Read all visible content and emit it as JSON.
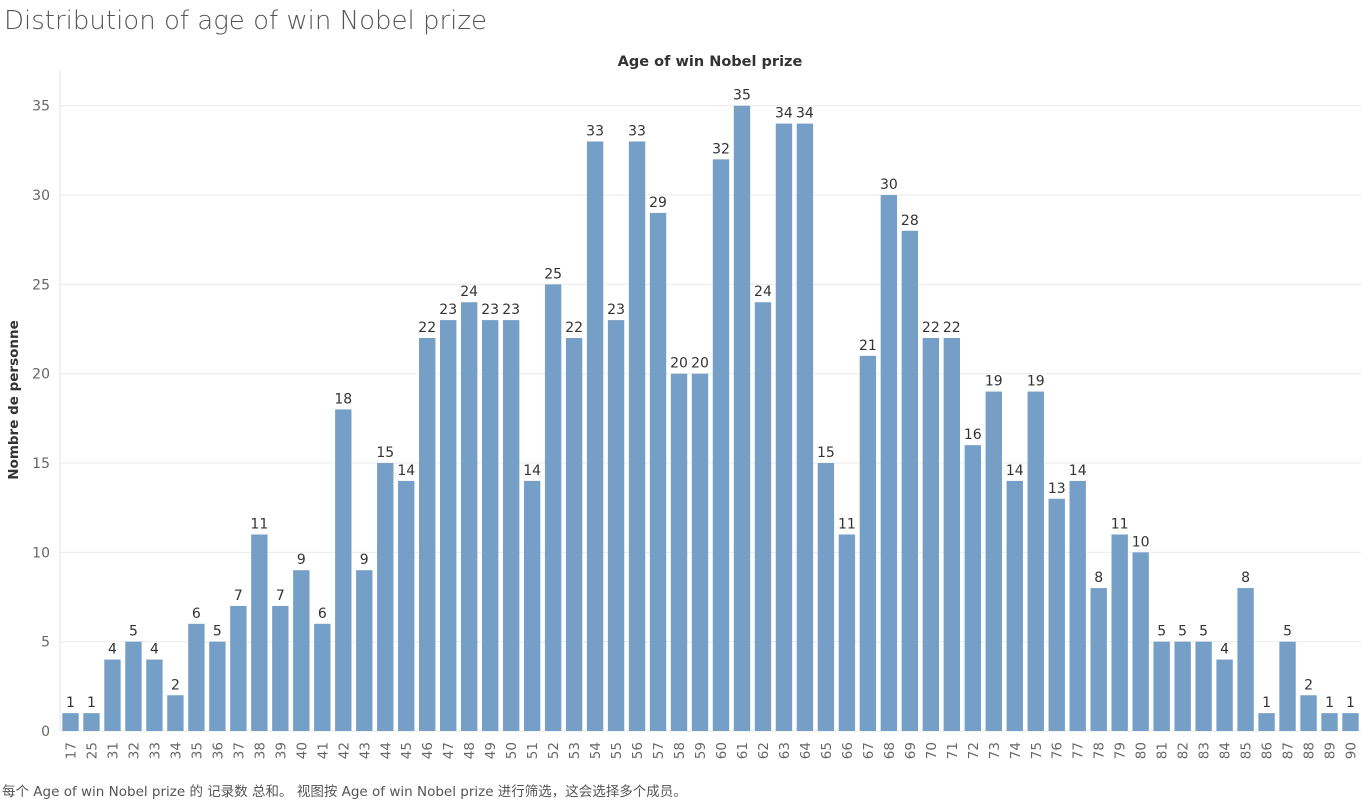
{
  "page": {
    "title": "Distribution of age of win Nobel prize",
    "footnote": "每个 Age of win Nobel prize 的 记录数 总和。 视图按 Age of win Nobel prize 进行筛选，这会选择多个成员。"
  },
  "colors": {
    "bar": "#759fc7",
    "grid": "#ebebeb",
    "axis_text": "#666666",
    "label_text": "#333333"
  },
  "chart_data": {
    "type": "bar",
    "title": "Age of win Nobel prize",
    "xlabel": "",
    "ylabel": "Nombre de personne",
    "ylim": [
      0,
      37
    ],
    "yticks": [
      0,
      5,
      10,
      15,
      20,
      25,
      30,
      35
    ],
    "grid": true,
    "categories": [
      "17",
      "25",
      "31",
      "32",
      "33",
      "34",
      "35",
      "36",
      "37",
      "38",
      "39",
      "40",
      "41",
      "42",
      "43",
      "44",
      "45",
      "46",
      "47",
      "48",
      "49",
      "50",
      "51",
      "52",
      "53",
      "54",
      "55",
      "56",
      "57",
      "58",
      "59",
      "60",
      "61",
      "62",
      "63",
      "64",
      "65",
      "66",
      "67",
      "68",
      "69",
      "70",
      "71",
      "72",
      "73",
      "74",
      "75",
      "76",
      "77",
      "78",
      "79",
      "80",
      "81",
      "82",
      "83",
      "84",
      "85",
      "86",
      "87",
      "88",
      "89",
      "90"
    ],
    "values": [
      1,
      1,
      4,
      5,
      4,
      2,
      6,
      5,
      7,
      11,
      7,
      9,
      6,
      18,
      9,
      15,
      14,
      22,
      23,
      24,
      23,
      23,
      14,
      25,
      22,
      33,
      23,
      33,
      29,
      20,
      20,
      32,
      35,
      24,
      34,
      34,
      15,
      11,
      21,
      30,
      28,
      22,
      22,
      16,
      19,
      14,
      19,
      13,
      14,
      8,
      11,
      10,
      5,
      5,
      5,
      4,
      8,
      1,
      5,
      2,
      1,
      1
    ]
  }
}
